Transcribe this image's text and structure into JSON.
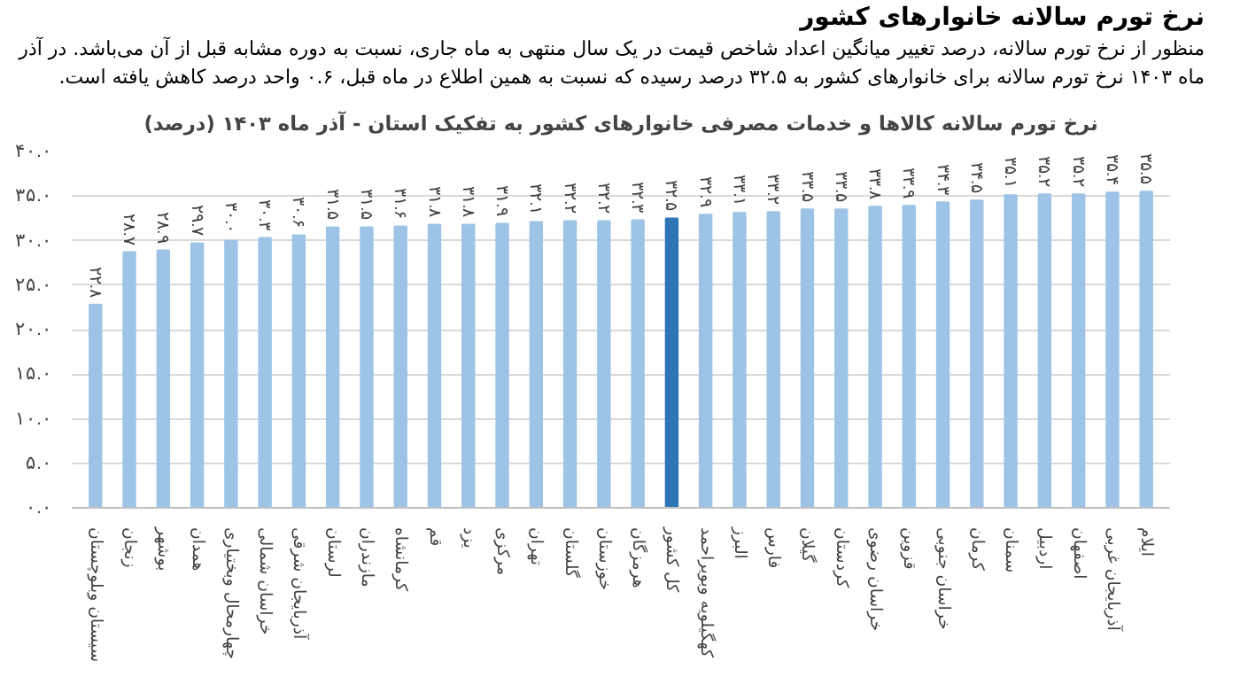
{
  "chart_data": {
    "type": "bar",
    "title": "نرخ تورم سالانه کالاها و خدمات مصرفی خانوارهای کشور به تفکیک استان - آذر ماه ۱۴۰۳ (درصد)",
    "annotations": [
      "نرخ تورم سالانه خانوارهای کشور",
      "منظور از نرخ تورم سالانه، درصد تغییر میانگین اعداد شاخص قیمت در یک سال منتهی به ماه جاری، نسبت به دوره مشابه قبل از آن می‌باشد. در آذر\nماه ۱۴۰۳ نرخ تورم سالانه برای خانوارهای کشور به ۳۲.۵ درصد رسیده که نسبت به همین اطلاع در ماه قبل، ۰.۶ واحد درصد کاهش یافته است."
    ],
    "categories": [
      "سیستان وبلوچستان",
      "زنجان",
      "بوشهر",
      "همدان",
      "چهارمحال وبختیاری",
      "خراسان شمالی",
      "آذربایجان شرقی",
      "لرستان",
      "مازندران",
      "کرمانشاه",
      "قم",
      "یزد",
      "مرکزی",
      "تهران",
      "گلستان",
      "خوزستان",
      "هرمزگان",
      "کل کشور",
      "کهگیلویه وبویراحمد",
      "البرز",
      "فارس",
      "گیلان",
      "کردستان",
      "خراسان رضوی",
      "قزوین",
      "خراسان جنوبی",
      "کرمان",
      "سمنان",
      "اردبیل",
      "اصفهان",
      "آذربایجان غربی",
      "ایلام"
    ],
    "values": [
      22.8,
      28.7,
      28.9,
      29.7,
      30.0,
      30.3,
      30.6,
      31.5,
      31.5,
      31.6,
      31.8,
      31.8,
      31.9,
      32.1,
      32.2,
      32.2,
      32.3,
      32.5,
      32.9,
      33.1,
      33.2,
      33.5,
      33.5,
      33.8,
      33.9,
      34.3,
      34.5,
      35.1,
      35.2,
      35.2,
      35.4,
      35.5
    ],
    "value_labels": [
      "۲۲.۸",
      "۲۸.۷",
      "۲۸.۹",
      "۲۹.۷",
      "۳۰.۰",
      "۳۰.۳",
      "۳۰.۶",
      "۳۱.۵",
      "۳۱.۵",
      "۳۱.۶",
      "۳۱.۸",
      "۳۱.۸",
      "۳۱.۹",
      "۳۲.۱",
      "۳۲.۲",
      "۳۲.۲",
      "۳۲.۳",
      "۳۲.۵",
      "۳۲.۹",
      "۳۳.۱",
      "۳۳.۲",
      "۳۳.۵",
      "۳۳.۵",
      "۳۳.۸",
      "۳۳.۹",
      "۳۴.۳",
      "۳۴.۵",
      "۳۵.۱",
      "۳۵.۲",
      "۳۵.۲",
      "۳۵.۴",
      "۳۵.۵"
    ],
    "colors": [
      "#9dc3e6",
      "#9dc3e6",
      "#9dc3e6",
      "#9dc3e6",
      "#9dc3e6",
      "#9dc3e6",
      "#9dc3e6",
      "#9dc3e6",
      "#9dc3e6",
      "#9dc3e6",
      "#9dc3e6",
      "#9dc3e6",
      "#9dc3e6",
      "#9dc3e6",
      "#9dc3e6",
      "#9dc3e6",
      "#9dc3e6",
      "#2e75b6",
      "#9dc3e6",
      "#9dc3e6",
      "#9dc3e6",
      "#9dc3e6",
      "#9dc3e6",
      "#9dc3e6",
      "#9dc3e6",
      "#9dc3e6",
      "#9dc3e6",
      "#9dc3e6",
      "#9dc3e6",
      "#9dc3e6",
      "#9dc3e6",
      "#9dc3e6"
    ],
    "ylim": [
      0,
      40
    ],
    "yticks": [
      {
        "value": 0,
        "label": "۰.۰"
      },
      {
        "value": 5,
        "label": "۵.۰"
      },
      {
        "value": 10,
        "label": "۱۰.۰"
      },
      {
        "value": 15,
        "label": "۱۵.۰"
      },
      {
        "value": 20,
        "label": "۲۰.۰"
      },
      {
        "value": 25,
        "label": "۲۵.۰"
      },
      {
        "value": 30,
        "label": "۳۰.۰"
      },
      {
        "value": 35,
        "label": "۳۵.۰"
      },
      {
        "value": 40,
        "label": "۴۰.۰"
      }
    ],
    "grid": "y"
  }
}
